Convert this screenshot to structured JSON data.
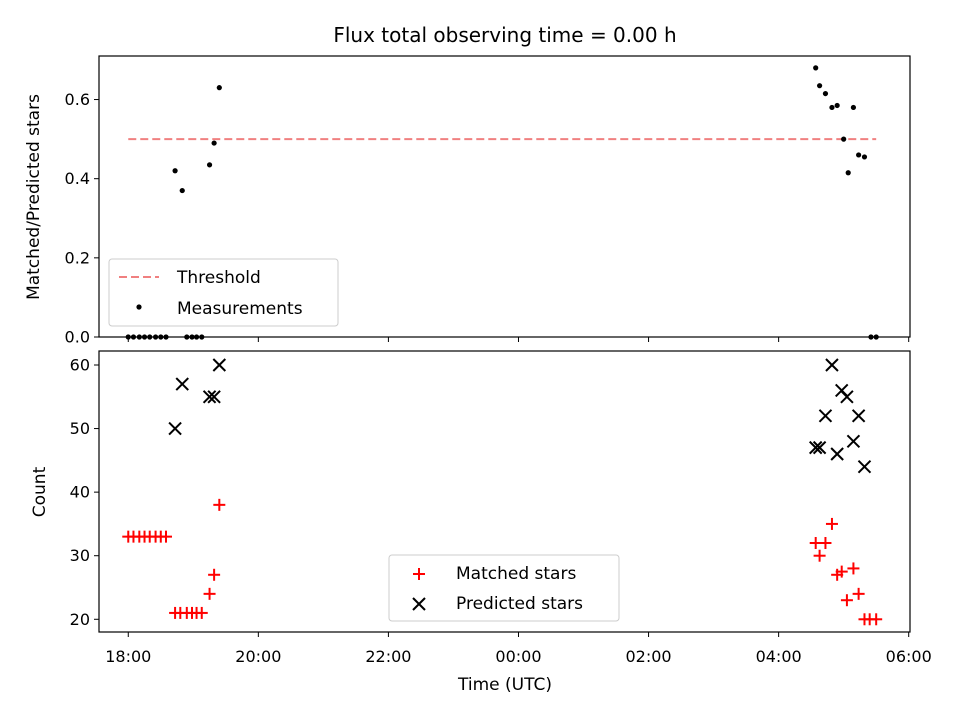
{
  "chart_data": {
    "title": "Flux total observing time = 0.00 h",
    "xlabel": "Time (UTC)",
    "x_ticks": [
      "18:00",
      "20:00",
      "22:00",
      "00:00",
      "02:00",
      "04:00",
      "06:00"
    ],
    "x_tick_hours": [
      18,
      20,
      22,
      24,
      26,
      28,
      30
    ],
    "x_range_hours": [
      17.55,
      30.02
    ],
    "panels": [
      {
        "type": "scatter",
        "ylabel": "Matched/Predicted stars",
        "ylim": [
          0,
          0.71
        ],
        "y_ticks": [
          0.0,
          0.2,
          0.4,
          0.6
        ],
        "y_tick_labels": [
          "0.0",
          "0.2",
          "0.4",
          "0.6"
        ],
        "threshold": {
          "name": "Threshold",
          "value": 0.5,
          "x_range": [
            18.0,
            29.5
          ],
          "color": "#f08080"
        },
        "series": [
          {
            "name": "Measurements",
            "color": "#000000",
            "x": [
              18.0,
              18.08,
              18.17,
              18.25,
              18.33,
              18.42,
              18.5,
              18.58,
              18.72,
              18.83,
              18.9,
              18.98,
              19.05,
              19.13,
              19.25,
              19.32,
              19.4,
              28.57,
              28.63,
              28.72,
              28.82,
              28.9,
              29.0,
              29.07,
              29.15,
              29.23,
              29.32,
              29.42,
              29.5
            ],
            "y": [
              0,
              0,
              0,
              0,
              0,
              0,
              0,
              0,
              0.42,
              0.37,
              0,
              0,
              0,
              0,
              0.435,
              0.49,
              0.63,
              0.68,
              0.635,
              0.615,
              0.58,
              0.585,
              0.5,
              0.415,
              0.58,
              0.46,
              0.455,
              0,
              0
            ]
          }
        ],
        "legend": {
          "position": "lower left",
          "entries": [
            "Threshold",
            "Measurements"
          ]
        }
      },
      {
        "type": "scatter",
        "ylabel": "Count",
        "ylim": [
          18,
          62.2
        ],
        "y_ticks": [
          20,
          30,
          40,
          50,
          60
        ],
        "y_tick_labels": [
          "20",
          "30",
          "40",
          "50",
          "60"
        ],
        "series": [
          {
            "name": "Matched stars",
            "marker": "plus",
            "color": "#ff0000",
            "x": [
              18.0,
              18.08,
              18.17,
              18.25,
              18.33,
              18.42,
              18.5,
              18.58,
              18.72,
              18.8,
              18.9,
              18.98,
              19.05,
              19.13,
              19.25,
              19.32,
              19.4,
              28.57,
              28.63,
              28.72,
              28.82,
              28.9,
              28.97,
              29.05,
              29.15,
              29.23,
              29.32,
              29.4,
              29.5
            ],
            "y": [
              33,
              33,
              33,
              33,
              33,
              33,
              33,
              33,
              21,
              21,
              21,
              21,
              21,
              21,
              24,
              27,
              38,
              32,
              30,
              32,
              35,
              27,
              27.5,
              23,
              28,
              24,
              20,
              20,
              20
            ]
          },
          {
            "name": "Predicted stars",
            "marker": "x",
            "color": "#000000",
            "x": [
              18.72,
              18.83,
              19.25,
              19.32,
              19.4,
              28.57,
              28.63,
              28.72,
              28.82,
              28.9,
              28.97,
              29.05,
              29.15,
              29.23,
              29.32
            ],
            "y": [
              50,
              57,
              55,
              55,
              60,
              47,
              47,
              52,
              60,
              46,
              56,
              55,
              48,
              52,
              44
            ]
          }
        ],
        "legend": {
          "position": "lower center",
          "entries": [
            "Matched stars",
            "Predicted stars"
          ]
        }
      }
    ]
  }
}
